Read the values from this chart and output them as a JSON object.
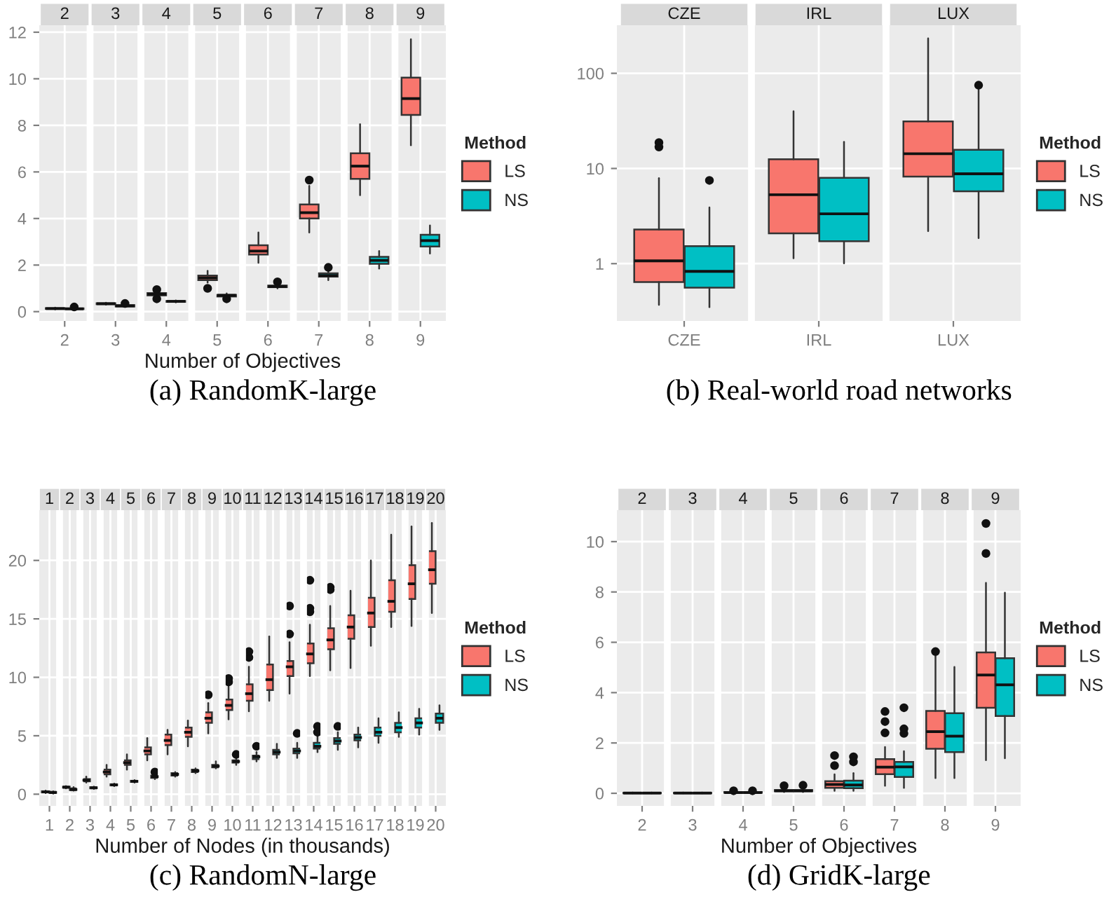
{
  "chart_data": [
    {
      "type": "box",
      "title": "(a) RandomK-large",
      "xlabel": "Number of Objectives",
      "legend_title": "Method",
      "legend": "right",
      "grid": true,
      "categories": [
        "2",
        "3",
        "4",
        "5",
        "6",
        "7",
        "8",
        "9"
      ],
      "ylim": [
        -0.4,
        12.3
      ],
      "yticks": [
        0,
        2,
        4,
        6,
        8,
        10,
        12
      ],
      "series": [
        {
          "name": "LS",
          "color": "#f8766d",
          "boxes": [
            {
              "low": 0.1,
              "q1": 0.12,
              "median": 0.13,
              "q3": 0.15,
              "high": 0.17
            },
            {
              "low": 0.3,
              "q1": 0.32,
              "median": 0.34,
              "q3": 0.36,
              "high": 0.38
            },
            {
              "low": 0.6,
              "q1": 0.7,
              "median": 0.75,
              "q3": 0.8,
              "high": 0.85,
              "outliers": [
                0.55,
                0.95
              ]
            },
            {
              "low": 1.25,
              "q1": 1.35,
              "median": 1.45,
              "q3": 1.55,
              "high": 1.75,
              "outliers": [
                1.0
              ]
            },
            {
              "low": 2.1,
              "q1": 2.45,
              "median": 2.6,
              "q3": 2.85,
              "high": 3.4
            },
            {
              "low": 3.4,
              "q1": 4.0,
              "median": 4.25,
              "q3": 4.6,
              "high": 5.4,
              "outliers": [
                5.65
              ]
            },
            {
              "low": 5.0,
              "q1": 5.7,
              "median": 6.25,
              "q3": 6.8,
              "high": 8.05
            },
            {
              "low": 7.15,
              "q1": 8.45,
              "median": 9.15,
              "q3": 10.05,
              "high": 11.7
            }
          ]
        },
        {
          "name": "NS",
          "color": "#00bfc4",
          "boxes": [
            {
              "low": 0.1,
              "q1": 0.11,
              "median": 0.12,
              "q3": 0.14,
              "high": 0.16,
              "outliers": [
                0.2
              ]
            },
            {
              "low": 0.2,
              "q1": 0.22,
              "median": 0.25,
              "q3": 0.28,
              "high": 0.32,
              "outliers": [
                0.35
              ]
            },
            {
              "low": 0.4,
              "q1": 0.42,
              "median": 0.44,
              "q3": 0.46,
              "high": 0.48
            },
            {
              "low": 0.6,
              "q1": 0.65,
              "median": 0.7,
              "q3": 0.72,
              "high": 0.78,
              "outliers": [
                0.55
              ]
            },
            {
              "low": 1.0,
              "q1": 1.05,
              "median": 1.08,
              "q3": 1.12,
              "high": 1.2,
              "outliers": [
                1.28
              ]
            },
            {
              "low": 1.35,
              "q1": 1.5,
              "median": 1.55,
              "q3": 1.65,
              "high": 1.8,
              "outliers": [
                1.9
              ]
            },
            {
              "low": 1.85,
              "q1": 2.05,
              "median": 2.2,
              "q3": 2.35,
              "high": 2.6
            },
            {
              "low": 2.5,
              "q1": 2.8,
              "median": 3.05,
              "q3": 3.3,
              "high": 3.7
            }
          ]
        }
      ]
    },
    {
      "type": "box",
      "title": "(b) Real-world road networks",
      "legend_title": "Method",
      "legend": "right",
      "grid": true,
      "log": true,
      "categories": [
        "CZE",
        "IRL",
        "LUX"
      ],
      "ylim": [
        0.25,
        320
      ],
      "yticks": [
        1,
        10,
        100
      ],
      "series": [
        {
          "name": "LS",
          "color": "#f8766d",
          "boxes": [
            {
              "low": 0.37,
              "q1": 0.64,
              "median": 1.07,
              "q3": 2.28,
              "high": 7.9,
              "outliers": [
                16.8,
                18.7
              ]
            },
            {
              "low": 1.14,
              "q1": 2.08,
              "median": 5.3,
              "q3": 12.5,
              "high": 40
            },
            {
              "low": 2.2,
              "q1": 8.2,
              "median": 14.3,
              "q3": 31.2,
              "high": 233
            }
          ]
        },
        {
          "name": "NS",
          "color": "#00bfc4",
          "boxes": [
            {
              "low": 0.35,
              "q1": 0.56,
              "median": 0.83,
              "q3": 1.53,
              "high": 3.9,
              "outliers": [
                7.5
              ]
            },
            {
              "low": 1.01,
              "q1": 1.72,
              "median": 3.34,
              "q3": 7.97,
              "high": 19.0
            },
            {
              "low": 1.86,
              "q1": 5.75,
              "median": 8.8,
              "q3": 15.7,
              "high": 70,
              "outliers": [
                75
              ]
            }
          ]
        }
      ]
    },
    {
      "type": "box",
      "title": "(c) RandomN-large",
      "xlabel": "Number of Nodes (in thousands)",
      "legend_title": "Method",
      "legend": "right",
      "grid": true,
      "categories": [
        "1",
        "2",
        "3",
        "4",
        "5",
        "6",
        "7",
        "8",
        "9",
        "10",
        "11",
        "12",
        "13",
        "14",
        "15",
        "16",
        "17",
        "18",
        "19",
        "20"
      ],
      "ylim": [
        -1.0,
        24.3
      ],
      "yticks": [
        0,
        5,
        10,
        15,
        20
      ],
      "series": [
        {
          "name": "LS",
          "color": "#f8766d",
          "boxes": [
            {
              "low": 0.1,
              "q1": 0.15,
              "median": 0.2,
              "q3": 0.25,
              "high": 0.3
            },
            {
              "low": 0.5,
              "q1": 0.55,
              "median": 0.6,
              "q3": 0.65,
              "high": 0.7
            },
            {
              "low": 1.0,
              "q1": 1.1,
              "median": 1.2,
              "q3": 1.3,
              "high": 1.5
            },
            {
              "low": 1.5,
              "q1": 1.7,
              "median": 1.9,
              "q3": 2.1,
              "high": 2.5
            },
            {
              "low": 2.1,
              "q1": 2.5,
              "median": 2.7,
              "q3": 2.9,
              "high": 3.4
            },
            {
              "low": 2.9,
              "q1": 3.4,
              "median": 3.7,
              "q3": 4.0,
              "high": 4.8
            },
            {
              "low": 3.4,
              "q1": 4.2,
              "median": 4.6,
              "q3": 5.1,
              "high": 5.5
            },
            {
              "low": 4.1,
              "q1": 4.9,
              "median": 5.3,
              "q3": 5.7,
              "high": 6.3
            },
            {
              "low": 5.2,
              "q1": 6.1,
              "median": 6.5,
              "q3": 7.0,
              "high": 7.8,
              "outliers": [
                8.5
              ]
            },
            {
              "low": 6.4,
              "q1": 7.2,
              "median": 7.6,
              "q3": 8.1,
              "high": 9.2,
              "outliers": [
                9.6,
                9.9
              ]
            },
            {
              "low": 7.1,
              "q1": 8.0,
              "median": 8.6,
              "q3": 9.4,
              "high": 10.9,
              "outliers": [
                11.7,
                12.2
              ]
            },
            {
              "low": 8.0,
              "q1": 8.9,
              "median": 9.8,
              "q3": 11.1,
              "high": 13.5
            },
            {
              "low": 8.6,
              "q1": 10.1,
              "median": 10.9,
              "q3": 11.4,
              "high": 13.0,
              "outliers": [
                13.7,
                16.1
              ]
            },
            {
              "low": 10.1,
              "q1": 11.2,
              "median": 12.0,
              "q3": 12.9,
              "high": 14.5,
              "outliers": [
                15.6,
                15.9,
                18.3
              ]
            },
            {
              "low": 10.6,
              "q1": 12.4,
              "median": 13.2,
              "q3": 14.2,
              "high": 16.1,
              "outliers": [
                17.5,
                17.7
              ]
            },
            {
              "low": 10.8,
              "q1": 13.3,
              "median": 14.3,
              "q3": 15.3,
              "high": 17.4
            },
            {
              "low": 12.7,
              "q1": 14.3,
              "median": 15.5,
              "q3": 16.8,
              "high": 20.0
            },
            {
              "low": 14.3,
              "q1": 15.6,
              "median": 16.5,
              "q3": 18.3,
              "high": 22.2
            },
            {
              "low": 14.4,
              "q1": 16.7,
              "median": 18.0,
              "q3": 19.6,
              "high": 22.9
            },
            {
              "low": 15.5,
              "q1": 18.0,
              "median": 19.2,
              "q3": 20.8,
              "high": 23.2
            }
          ]
        },
        {
          "name": "NS",
          "color": "#00bfc4",
          "boxes": [
            {
              "low": 0.05,
              "q1": 0.1,
              "median": 0.15,
              "q3": 0.2,
              "high": 0.25
            },
            {
              "low": 0.3,
              "q1": 0.35,
              "median": 0.4,
              "q3": 0.5,
              "high": 0.6
            },
            {
              "low": 0.45,
              "q1": 0.5,
              "median": 0.55,
              "q3": 0.6,
              "high": 0.65
            },
            {
              "low": 0.7,
              "q1": 0.75,
              "median": 0.8,
              "q3": 0.85,
              "high": 0.9
            },
            {
              "low": 1.0,
              "q1": 1.05,
              "median": 1.1,
              "q3": 1.15,
              "high": 1.2
            },
            {
              "low": 1.3,
              "q1": 1.4,
              "median": 1.5,
              "q3": 1.6,
              "high": 1.7,
              "outliers": [
                1.9
              ]
            },
            {
              "low": 1.5,
              "q1": 1.6,
              "median": 1.7,
              "q3": 1.8,
              "high": 1.9
            },
            {
              "low": 1.8,
              "q1": 1.9,
              "median": 2.0,
              "q3": 2.1,
              "high": 2.2
            },
            {
              "low": 2.2,
              "q1": 2.3,
              "median": 2.4,
              "q3": 2.5,
              "high": 2.8
            },
            {
              "low": 2.5,
              "q1": 2.7,
              "median": 2.8,
              "q3": 2.9,
              "high": 3.1,
              "outliers": [
                3.4
              ]
            },
            {
              "low": 2.8,
              "q1": 3.0,
              "median": 3.2,
              "q3": 3.3,
              "high": 3.6,
              "outliers": [
                4.1
              ]
            },
            {
              "low": 3.1,
              "q1": 3.4,
              "median": 3.6,
              "q3": 3.8,
              "high": 4.3
            },
            {
              "low": 3.1,
              "q1": 3.5,
              "median": 3.7,
              "q3": 3.9,
              "high": 4.4,
              "outliers": [
                5.2
              ]
            },
            {
              "low": 3.6,
              "q1": 3.9,
              "median": 4.1,
              "q3": 4.4,
              "high": 5.1,
              "outliers": [
                5.3,
                5.8
              ]
            },
            {
              "low": 3.8,
              "q1": 4.3,
              "median": 4.55,
              "q3": 4.8,
              "high": 5.3,
              "outliers": [
                5.8
              ]
            },
            {
              "low": 4.0,
              "q1": 4.6,
              "median": 4.85,
              "q3": 5.1,
              "high": 5.7
            },
            {
              "low": 4.4,
              "q1": 5.0,
              "median": 5.3,
              "q3": 5.7,
              "high": 6.5
            },
            {
              "low": 4.9,
              "q1": 5.3,
              "median": 5.7,
              "q3": 6.1,
              "high": 7.0
            },
            {
              "low": 5.1,
              "q1": 5.7,
              "median": 6.1,
              "q3": 6.5,
              "high": 7.3
            },
            {
              "low": 5.5,
              "q1": 6.1,
              "median": 6.5,
              "q3": 6.9,
              "high": 7.6
            }
          ]
        }
      ]
    },
    {
      "type": "box",
      "title": "(d) GridK-large",
      "xlabel": "Number of Objectives",
      "legend_title": "Method",
      "legend": "right",
      "grid": true,
      "categories": [
        "2",
        "3",
        "4",
        "5",
        "6",
        "7",
        "8",
        "9"
      ],
      "ylim": [
        -0.5,
        11.25
      ],
      "yticks": [
        0,
        2,
        4,
        6,
        8,
        10
      ],
      "series": [
        {
          "name": "LS",
          "color": "#f8766d",
          "boxes": [
            {
              "low": 0.0,
              "q1": 0.0,
              "median": 0.01,
              "q3": 0.02,
              "high": 0.03
            },
            {
              "low": 0.0,
              "q1": 0.0,
              "median": 0.01,
              "q3": 0.02,
              "high": 0.03
            },
            {
              "low": 0.0,
              "q1": 0.02,
              "median": 0.03,
              "q3": 0.05,
              "high": 0.07,
              "outliers": [
                0.1
              ]
            },
            {
              "low": 0.05,
              "q1": 0.08,
              "median": 0.1,
              "q3": 0.13,
              "high": 0.18,
              "outliers": [
                0.3
              ]
            },
            {
              "low": 0.1,
              "q1": 0.22,
              "median": 0.35,
              "q3": 0.48,
              "high": 0.75,
              "outliers": [
                1.1,
                1.5
              ]
            },
            {
              "low": 0.3,
              "q1": 0.76,
              "median": 1.04,
              "q3": 1.36,
              "high": 1.84,
              "outliers": [
                2.4,
                2.85,
                3.25
              ]
            },
            {
              "low": 0.61,
              "q1": 1.77,
              "median": 2.45,
              "q3": 3.27,
              "high": 5.45,
              "outliers": [
                5.63
              ]
            },
            {
              "low": 1.32,
              "q1": 3.4,
              "median": 4.7,
              "q3": 5.6,
              "high": 8.36,
              "outliers": [
                9.53,
                10.72
              ]
            }
          ]
        },
        {
          "name": "NS",
          "color": "#00bfc4",
          "boxes": [
            {
              "low": 0.0,
              "q1": 0.0,
              "median": 0.01,
              "q3": 0.02,
              "high": 0.03
            },
            {
              "low": 0.0,
              "q1": 0.0,
              "median": 0.01,
              "q3": 0.02,
              "high": 0.03
            },
            {
              "low": 0.0,
              "q1": 0.02,
              "median": 0.03,
              "q3": 0.05,
              "high": 0.07,
              "outliers": [
                0.1
              ]
            },
            {
              "low": 0.05,
              "q1": 0.08,
              "median": 0.1,
              "q3": 0.13,
              "high": 0.18,
              "outliers": [
                0.32
              ]
            },
            {
              "low": 0.1,
              "q1": 0.2,
              "median": 0.33,
              "q3": 0.5,
              "high": 0.8,
              "outliers": [
                1.25,
                1.45
              ]
            },
            {
              "low": 0.22,
              "q1": 0.65,
              "median": 1.05,
              "q3": 1.25,
              "high": 1.67,
              "outliers": [
                2.38,
                2.56,
                3.4
              ]
            },
            {
              "low": 0.61,
              "q1": 1.64,
              "median": 2.27,
              "q3": 3.18,
              "high": 5.02
            },
            {
              "low": 1.39,
              "q1": 3.07,
              "median": 4.31,
              "q3": 5.37,
              "high": 7.97
            }
          ]
        }
      ]
    }
  ]
}
